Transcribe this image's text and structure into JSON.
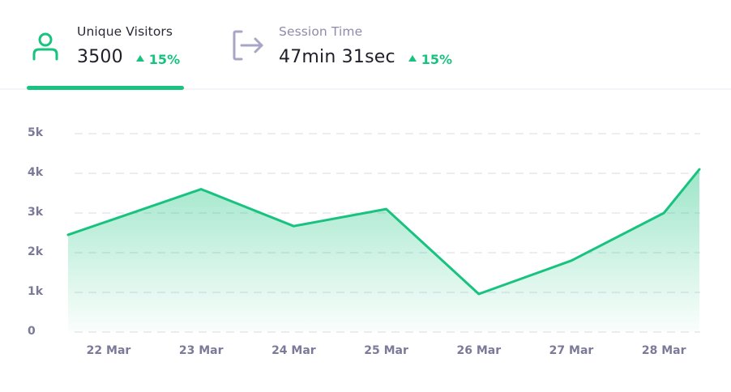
{
  "tabs": [
    {
      "icon": "user-icon",
      "title": "Unique Visitors",
      "value": "3500",
      "delta": "15%",
      "delta_direction": "up",
      "active": true
    },
    {
      "icon": "sign-out-icon",
      "title": "Session Time",
      "value": "47min 31sec",
      "delta": "15%",
      "delta_direction": "up",
      "active": false
    }
  ],
  "colors": {
    "accent": "#17c37f",
    "text_primary": "#1f1f2b",
    "text_active_title": "#2b2b36",
    "text_inactive_title": "#8e8cab",
    "axis_label": "#7b7a98",
    "grid": "#e6e6ef",
    "separator": "#f3f3f8"
  },
  "chart_data": {
    "type": "area",
    "title": "Unique Visitors",
    "xlabel": "",
    "ylabel": "",
    "categories": [
      "22 Mar",
      "23 Mar",
      "24 Mar",
      "25 Mar",
      "26 Mar",
      "27 Mar",
      "28 Mar"
    ],
    "series": [
      {
        "name": "Unique Visitors",
        "values": [
          2800,
          3600,
          2670,
          3100,
          960,
          1800,
          3000
        ],
        "edge_start": 2450,
        "edge_end": 4100,
        "color": "#17c37f"
      }
    ],
    "yticks": [
      "0",
      "1k",
      "2k",
      "3k",
      "4k",
      "5k"
    ],
    "ylim": [
      0,
      5000
    ],
    "grid": true,
    "grid_style": "dashed",
    "legend": "none"
  }
}
